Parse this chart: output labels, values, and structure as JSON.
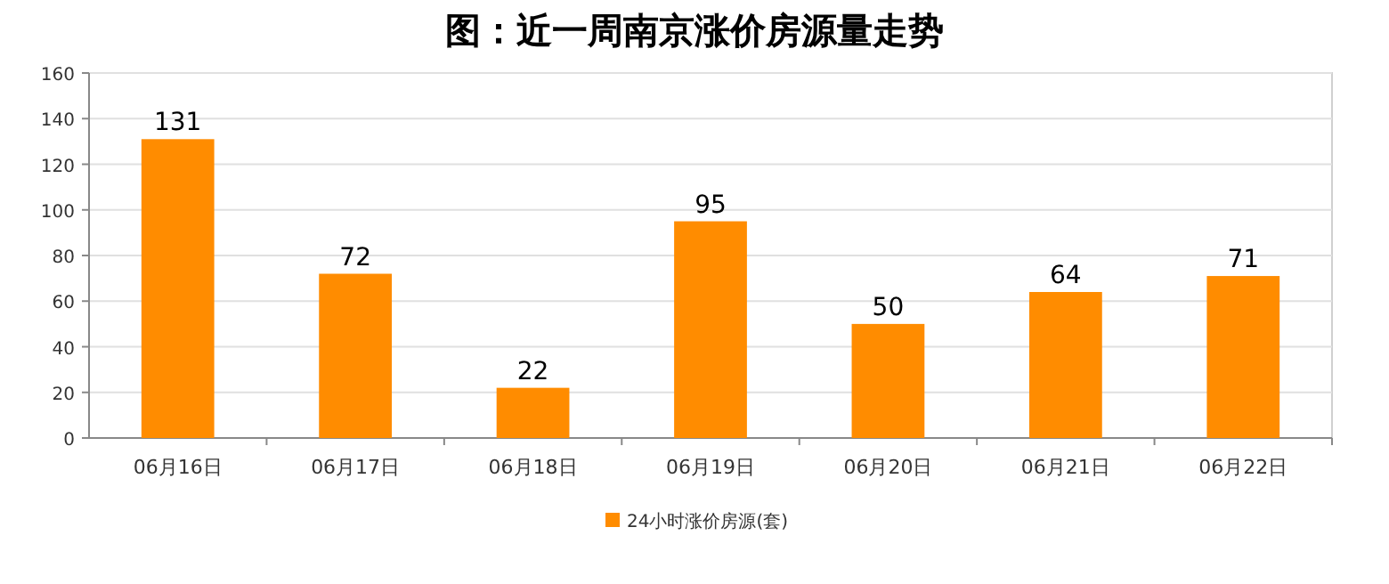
{
  "chart_data": {
    "type": "bar",
    "title": "图：近一周南京涨价房源量走势",
    "categories": [
      "06月16日",
      "06月17日",
      "06月18日",
      "06月19日",
      "06月20日",
      "06月21日",
      "06月22日"
    ],
    "series": [
      {
        "name": "24小时涨价房源(套)",
        "color": "#ff8c00",
        "values": [
          131,
          72,
          22,
          95,
          50,
          64,
          71
        ]
      }
    ],
    "ylim": [
      0,
      160
    ],
    "yticks": [
      0,
      20,
      40,
      60,
      80,
      100,
      120,
      140,
      160
    ],
    "grid": "y",
    "data_labels": true,
    "legend": "bottom"
  }
}
